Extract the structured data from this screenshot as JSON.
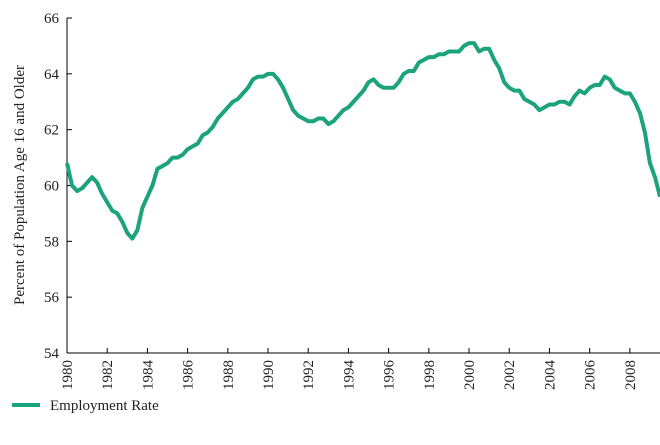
{
  "chart_data": {
    "type": "line",
    "ylabel": "Percent of Population Age 16 and Older",
    "x": [
      1980,
      1980.25,
      1980.5,
      1980.75,
      1981,
      1981.25,
      1981.5,
      1981.75,
      1982,
      1982.25,
      1982.5,
      1982.75,
      1983,
      1983.25,
      1983.5,
      1983.75,
      1984,
      1984.25,
      1984.5,
      1984.75,
      1985,
      1985.25,
      1985.5,
      1985.75,
      1986,
      1986.25,
      1986.5,
      1986.75,
      1987,
      1987.25,
      1987.5,
      1987.75,
      1988,
      1988.25,
      1988.5,
      1988.75,
      1989,
      1989.25,
      1989.5,
      1989.75,
      1990,
      1990.25,
      1990.5,
      1990.75,
      1991,
      1991.25,
      1991.5,
      1991.75,
      1992,
      1992.25,
      1992.5,
      1992.75,
      1993,
      1993.25,
      1993.5,
      1993.75,
      1994,
      1994.25,
      1994.5,
      1994.75,
      1995,
      1995.25,
      1995.5,
      1995.75,
      1996,
      1996.25,
      1996.5,
      1996.75,
      1997,
      1997.25,
      1997.5,
      1997.75,
      1998,
      1998.25,
      1998.5,
      1998.75,
      1999,
      1999.25,
      1999.5,
      1999.75,
      2000,
      2000.25,
      2000.5,
      2000.75,
      2001,
      2001.25,
      2001.5,
      2001.75,
      2002,
      2002.25,
      2002.5,
      2002.75,
      2003,
      2003.25,
      2003.5,
      2003.75,
      2004,
      2004.25,
      2004.5,
      2004.75,
      2005,
      2005.25,
      2005.5,
      2005.75,
      2006,
      2006.25,
      2006.5,
      2006.75,
      2007,
      2007.25,
      2007.5,
      2007.75,
      2008,
      2008.25,
      2008.5,
      2008.75,
      2009,
      2009.25,
      2009.5
    ],
    "series": [
      {
        "name": "Employment Rate",
        "color": "#1ba37b",
        "values": [
          60.8,
          60.0,
          59.8,
          59.9,
          60.1,
          60.3,
          60.1,
          59.7,
          59.4,
          59.1,
          59.0,
          58.7,
          58.3,
          58.1,
          58.4,
          59.2,
          59.6,
          60.0,
          60.6,
          60.7,
          60.8,
          61.0,
          61.0,
          61.1,
          61.3,
          61.4,
          61.5,
          61.8,
          61.9,
          62.1,
          62.4,
          62.6,
          62.8,
          63.0,
          63.1,
          63.3,
          63.5,
          63.8,
          63.9,
          63.9,
          64.0,
          64.0,
          63.8,
          63.5,
          63.1,
          62.7,
          62.5,
          62.4,
          62.3,
          62.3,
          62.4,
          62.4,
          62.2,
          62.3,
          62.5,
          62.7,
          62.8,
          63.0,
          63.2,
          63.4,
          63.7,
          63.8,
          63.6,
          63.5,
          63.5,
          63.5,
          63.7,
          64.0,
          64.1,
          64.1,
          64.4,
          64.5,
          64.6,
          64.6,
          64.7,
          64.7,
          64.8,
          64.8,
          64.8,
          65.0,
          65.1,
          65.1,
          64.8,
          64.9,
          64.9,
          64.5,
          64.2,
          63.7,
          63.5,
          63.4,
          63.4,
          63.1,
          63.0,
          62.9,
          62.7,
          62.8,
          62.9,
          62.9,
          63.0,
          63.0,
          62.9,
          63.2,
          63.4,
          63.3,
          63.5,
          63.6,
          63.6,
          63.9,
          63.8,
          63.5,
          63.4,
          63.3,
          63.3,
          63.0,
          62.6,
          61.9,
          60.8,
          60.3,
          59.6
        ]
      }
    ],
    "xlim": [
      1980,
      2009.5
    ],
    "xticks": [
      1980,
      1982,
      1984,
      1986,
      1988,
      1990,
      1992,
      1994,
      1996,
      1998,
      2000,
      2002,
      2004,
      2006,
      2008
    ],
    "ylim": [
      54,
      66
    ],
    "yticks": [
      54,
      56,
      58,
      60,
      62,
      64,
      66
    ],
    "grid": false,
    "legend": "bottom-left"
  }
}
